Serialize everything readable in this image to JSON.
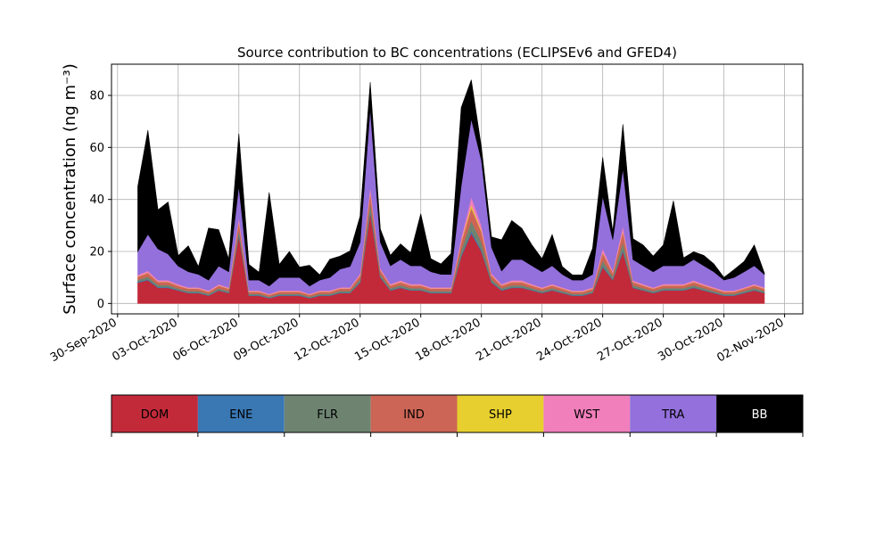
{
  "chart_data": {
    "type": "area",
    "stacked": true,
    "title": "Source contribution to BC concentrations (ECLIPSEv6 and GFED4)",
    "ylabel": "Surface concentration (ng m⁻³)",
    "xlabel": "",
    "xlim": [
      "2020-09-30",
      "2020-11-02"
    ],
    "ylim": [
      -4,
      92
    ],
    "yticks": [
      0,
      20,
      40,
      60,
      80
    ],
    "xticks": [
      "2020-09-30",
      "2020-10-03",
      "2020-10-06",
      "2020-10-09",
      "2020-10-12",
      "2020-10-15",
      "2020-10-18",
      "2020-10-21",
      "2020-10-24",
      "2020-10-27",
      "2020-10-30",
      "2020-11-02"
    ],
    "xtick_labels": [
      "30-Sep-2020",
      "03-Oct-2020",
      "06-Oct-2020",
      "09-Oct-2020",
      "12-Oct-2020",
      "15-Oct-2020",
      "18-Oct-2020",
      "21-Oct-2020",
      "24-Oct-2020",
      "27-Oct-2020",
      "30-Oct-2020",
      "02-Nov-2020"
    ],
    "grid": true,
    "legend_position": "below",
    "x": [
      "2020-10-01",
      "2020-10-01T12:00",
      "2020-10-02",
      "2020-10-02T12:00",
      "2020-10-03",
      "2020-10-03T12:00",
      "2020-10-04",
      "2020-10-04T12:00",
      "2020-10-05",
      "2020-10-05T12:00",
      "2020-10-06",
      "2020-10-06T12:00",
      "2020-10-07",
      "2020-10-07T12:00",
      "2020-10-08",
      "2020-10-08T12:00",
      "2020-10-09",
      "2020-10-09T12:00",
      "2020-10-10",
      "2020-10-10T12:00",
      "2020-10-11",
      "2020-10-11T12:00",
      "2020-10-12",
      "2020-10-12T12:00",
      "2020-10-13",
      "2020-10-13T12:00",
      "2020-10-14",
      "2020-10-14T12:00",
      "2020-10-15",
      "2020-10-15T12:00",
      "2020-10-16",
      "2020-10-16T12:00",
      "2020-10-17",
      "2020-10-17T12:00",
      "2020-10-18",
      "2020-10-18T12:00",
      "2020-10-19",
      "2020-10-19T12:00",
      "2020-10-20",
      "2020-10-20T12:00",
      "2020-10-21",
      "2020-10-21T12:00",
      "2020-10-22",
      "2020-10-22T12:00",
      "2020-10-23",
      "2020-10-23T12:00",
      "2020-10-24",
      "2020-10-24T12:00",
      "2020-10-25",
      "2020-10-25T12:00",
      "2020-10-26",
      "2020-10-26T12:00",
      "2020-10-27",
      "2020-10-27T12:00",
      "2020-10-28",
      "2020-10-28T12:00",
      "2020-10-29",
      "2020-10-29T12:00",
      "2020-10-30",
      "2020-10-30T12:00",
      "2020-10-31",
      "2020-10-31T12:00",
      "2020-11-01"
    ],
    "series": [
      {
        "name": "DOM",
        "color": "#c22a3a",
        "values": [
          8,
          9,
          6,
          6,
          5,
          4,
          4,
          3,
          5,
          4,
          26,
          3,
          3,
          2,
          3,
          3,
          3,
          2,
          3,
          3,
          4,
          4,
          8,
          35,
          10,
          5,
          6,
          5,
          5,
          4,
          4,
          4,
          18,
          27,
          20,
          8,
          5,
          6,
          6,
          5,
          4,
          5,
          4,
          3,
          3,
          4,
          14,
          9,
          20,
          6,
          5,
          4,
          5,
          5,
          5,
          6,
          5,
          4,
          3,
          3,
          4,
          5,
          4
        ]
      },
      {
        "name": "ENE",
        "color": "#3a78b4",
        "values": [
          0.3,
          0.3,
          0.3,
          0.3,
          0.2,
          0.2,
          0.2,
          0.2,
          0.2,
          0.2,
          0.5,
          0.2,
          0.2,
          0.2,
          0.2,
          0.2,
          0.2,
          0.2,
          0.2,
          0.2,
          0.2,
          0.2,
          0.3,
          0.8,
          0.3,
          0.2,
          0.2,
          0.2,
          0.2,
          0.2,
          0.2,
          0.2,
          0.5,
          0.8,
          0.6,
          0.3,
          0.2,
          0.2,
          0.2,
          0.2,
          0.2,
          0.2,
          0.2,
          0.2,
          0.2,
          0.2,
          0.5,
          0.3,
          0.6,
          0.2,
          0.2,
          0.2,
          0.2,
          0.2,
          0.2,
          0.2,
          0.2,
          0.2,
          0.2,
          0.2,
          0.2,
          0.2,
          0.2
        ]
      },
      {
        "name": "FLR",
        "color": "#6e8471",
        "values": [
          0.8,
          1,
          0.8,
          0.8,
          0.6,
          0.6,
          0.6,
          0.5,
          0.6,
          0.6,
          2,
          0.5,
          0.5,
          0.4,
          0.5,
          0.5,
          0.5,
          0.4,
          0.5,
          0.5,
          0.6,
          0.6,
          1,
          3,
          1,
          0.7,
          0.8,
          0.7,
          0.7,
          0.6,
          0.6,
          0.6,
          2,
          4,
          3,
          1,
          0.7,
          0.8,
          0.8,
          0.7,
          0.6,
          0.7,
          0.6,
          0.5,
          0.5,
          0.6,
          2,
          1,
          3,
          0.8,
          0.7,
          0.6,
          0.7,
          0.7,
          0.7,
          0.8,
          0.7,
          0.6,
          0.5,
          0.5,
          0.6,
          0.7,
          0.6
        ]
      },
      {
        "name": "IND",
        "color": "#cc6555",
        "values": [
          1.2,
          1.5,
          1.2,
          1.2,
          1,
          0.9,
          0.9,
          0.8,
          1,
          0.9,
          3,
          0.8,
          0.8,
          0.7,
          0.8,
          0.8,
          0.8,
          0.7,
          0.8,
          0.8,
          0.9,
          0.9,
          1.5,
          4,
          1.5,
          1,
          1.2,
          1,
          1,
          0.9,
          0.9,
          0.9,
          3,
          5,
          4,
          1.5,
          1,
          1.2,
          1.2,
          1,
          0.9,
          1,
          0.9,
          0.8,
          0.8,
          0.9,
          3,
          1.5,
          4,
          1.2,
          1,
          0.9,
          1,
          1,
          1,
          1.2,
          1,
          0.9,
          0.8,
          0.8,
          0.9,
          1,
          0.9
        ]
      },
      {
        "name": "SHP",
        "color": "#e6cf2e",
        "values": [
          0.1,
          0.1,
          0.1,
          0.1,
          0.1,
          0.1,
          0.1,
          0.1,
          0.1,
          0.1,
          0.3,
          0.1,
          0.1,
          0.1,
          0.1,
          0.1,
          0.1,
          0.1,
          0.1,
          0.1,
          0.1,
          0.1,
          0.1,
          0.3,
          0.1,
          0.1,
          0.1,
          0.1,
          0.1,
          0.1,
          0.1,
          0.1,
          0.3,
          1.2,
          0.5,
          0.1,
          0.1,
          0.1,
          0.1,
          0.1,
          0.1,
          0.1,
          0.1,
          0.1,
          0.1,
          0.1,
          0.2,
          0.1,
          0.3,
          0.1,
          0.1,
          0.1,
          0.1,
          0.1,
          0.1,
          0.1,
          0.1,
          0.1,
          0.1,
          0.1,
          0.1,
          0.1,
          0.1
        ]
      },
      {
        "name": "WST",
        "color": "#f07fbb",
        "values": [
          0.6,
          0.7,
          0.6,
          0.6,
          0.5,
          0.4,
          0.4,
          0.4,
          0.5,
          0.4,
          1.5,
          0.4,
          0.4,
          0.3,
          0.4,
          0.4,
          0.4,
          0.3,
          0.4,
          0.4,
          0.4,
          0.4,
          0.7,
          2,
          0.7,
          0.5,
          0.6,
          0.5,
          0.5,
          0.4,
          0.4,
          0.4,
          1.5,
          3,
          2,
          0.7,
          0.5,
          0.6,
          0.6,
          0.5,
          0.4,
          0.5,
          0.4,
          0.4,
          0.4,
          0.4,
          1.5,
          0.7,
          2,
          0.6,
          0.5,
          0.4,
          0.5,
          0.5,
          0.5,
          0.6,
          0.5,
          0.4,
          0.4,
          0.4,
          0.4,
          0.5,
          0.4
        ]
      },
      {
        "name": "TRA",
        "color": "#9370db",
        "values": [
          9,
          14,
          12,
          10,
          7,
          6,
          5,
          4,
          7,
          6,
          12,
          4,
          4,
          3,
          5,
          5,
          5,
          3,
          4,
          5,
          7,
          8,
          12,
          30,
          10,
          7,
          8,
          7,
          7,
          6,
          5,
          5,
          20,
          30,
          25,
          10,
          5,
          8,
          8,
          7,
          6,
          7,
          5,
          4,
          4,
          5,
          20,
          12,
          22,
          8,
          7,
          6,
          7,
          7,
          7,
          8,
          7,
          6,
          4,
          5,
          6,
          7,
          5
        ]
      },
      {
        "name": "BB",
        "color": "#000000",
        "values": [
          25,
          40,
          15,
          20,
          4,
          10,
          3,
          20,
          14,
          5,
          20,
          6,
          3,
          36,
          5,
          10,
          4,
          8,
          2,
          7,
          5,
          6,
          10,
          10,
          5,
          4,
          6,
          5,
          20,
          5,
          4,
          8,
          30,
          15,
          5,
          4,
          12,
          15,
          12,
          8,
          5,
          12,
          3,
          2,
          2,
          10,
          15,
          3,
          17,
          8,
          8,
          6,
          8,
          25,
          3,
          3,
          4,
          3,
          1,
          3,
          4,
          8,
          0.5
        ]
      }
    ]
  }
}
